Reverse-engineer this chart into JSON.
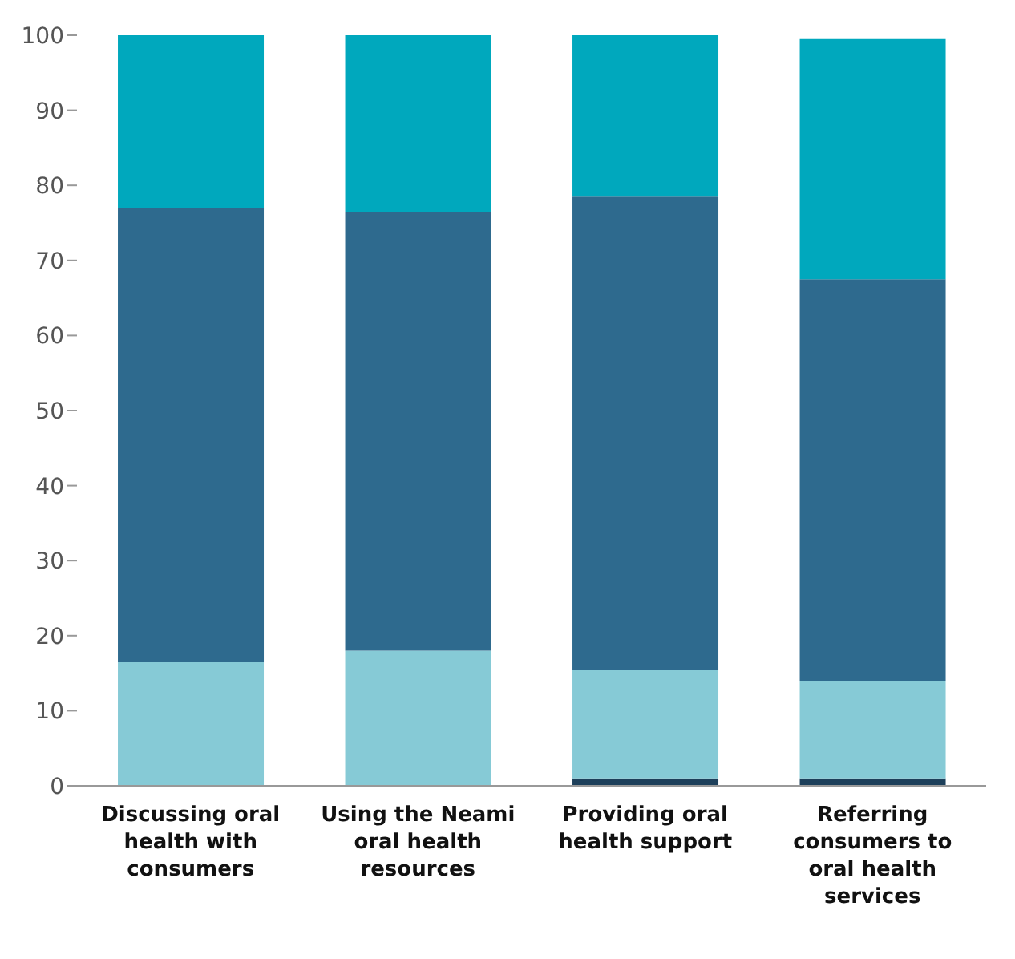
{
  "chart_data": {
    "type": "bar",
    "stacked": true,
    "categories": [
      "Discussing oral health with consumers",
      "Using the Neami oral health resources",
      "Providing oral health support",
      "Referring consumers to oral health services"
    ],
    "series": [
      {
        "color": "#1d3f5a",
        "values": [
          0,
          0,
          1,
          1
        ]
      },
      {
        "color": "#86cad6",
        "values": [
          16.5,
          18,
          14.5,
          13
        ]
      },
      {
        "color": "#2e6a8e",
        "values": [
          60.5,
          58.5,
          63,
          53.5
        ]
      },
      {
        "color": "#00a8bd",
        "values": [
          23,
          23.5,
          21.5,
          32
        ]
      }
    ],
    "ylim": [
      0,
      100
    ],
    "yticks": [
      0,
      10,
      20,
      30,
      40,
      50,
      60,
      70,
      80,
      90,
      100
    ],
    "grid": false,
    "legend": false
  }
}
